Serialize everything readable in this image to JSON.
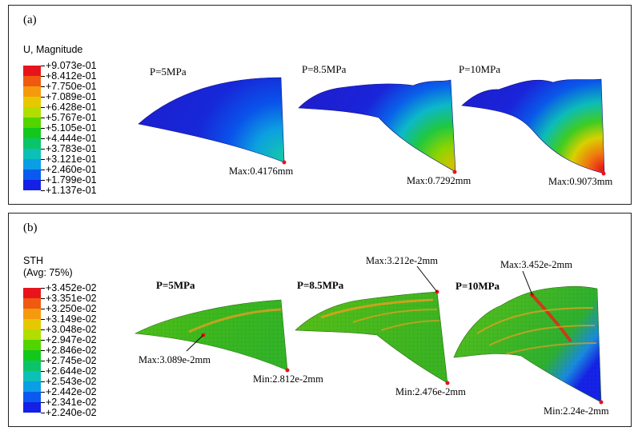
{
  "panel_a": {
    "label": "(a)",
    "legend_title": "U, Magnitude",
    "legend_values": [
      "+9.073e-01",
      "+8.412e-01",
      "+7.750e-01",
      "+7.089e-01",
      "+6.428e-01",
      "+5.767e-01",
      "+5.105e-01",
      "+4.444e-01",
      "+3.783e-01",
      "+3.121e-01",
      "+2.460e-01",
      "+1.799e-01",
      "+1.137e-01"
    ],
    "legend_colors": [
      "#e8141c",
      "#f05a10",
      "#f59a0c",
      "#e6c800",
      "#b0de00",
      "#52d400",
      "#12c81c",
      "#0bc46a",
      "#0cc0b8",
      "#0a9ee4",
      "#0a5af0",
      "#1420e6"
    ],
    "models": [
      {
        "pressure": "P=5MPa",
        "annotation": "Max:0.4176mm"
      },
      {
        "pressure": "P=8.5MPa",
        "annotation": "Max:0.7292mm"
      },
      {
        "pressure": "P=10MPa",
        "annotation": "Max:0.9073mm"
      }
    ]
  },
  "panel_b": {
    "label": "(b)",
    "legend_title": "STH\n(Avg: 75%)",
    "legend_values": [
      "+3.452e-02",
      "+3.351e-02",
      "+3.250e-02",
      "+3.149e-02",
      "+3.048e-02",
      "+2.947e-02",
      "+2.846e-02",
      "+2.745e-02",
      "+2.644e-02",
      "+2.543e-02",
      "+2.442e-02",
      "+2.341e-02",
      "+2.240e-02"
    ],
    "legend_colors": [
      "#e8141c",
      "#f05a10",
      "#f59a0c",
      "#e6c800",
      "#b0de00",
      "#52d400",
      "#12c81c",
      "#0bc46a",
      "#0cc0b8",
      "#0a9ee4",
      "#0a5af0",
      "#1420e6"
    ],
    "models": [
      {
        "pressure": "P=5MPa",
        "max": "Max:3.089e-2mm",
        "min": "Min:2.812e-2mm"
      },
      {
        "pressure": "P=8.5MPa",
        "max": "Max:3.212e-2mm",
        "min": "Min:2.476e-2mm"
      },
      {
        "pressure": "P=10MPa",
        "max": "Max:3.452e-2mm",
        "min": "Min:2.24e-2mm"
      }
    ]
  }
}
